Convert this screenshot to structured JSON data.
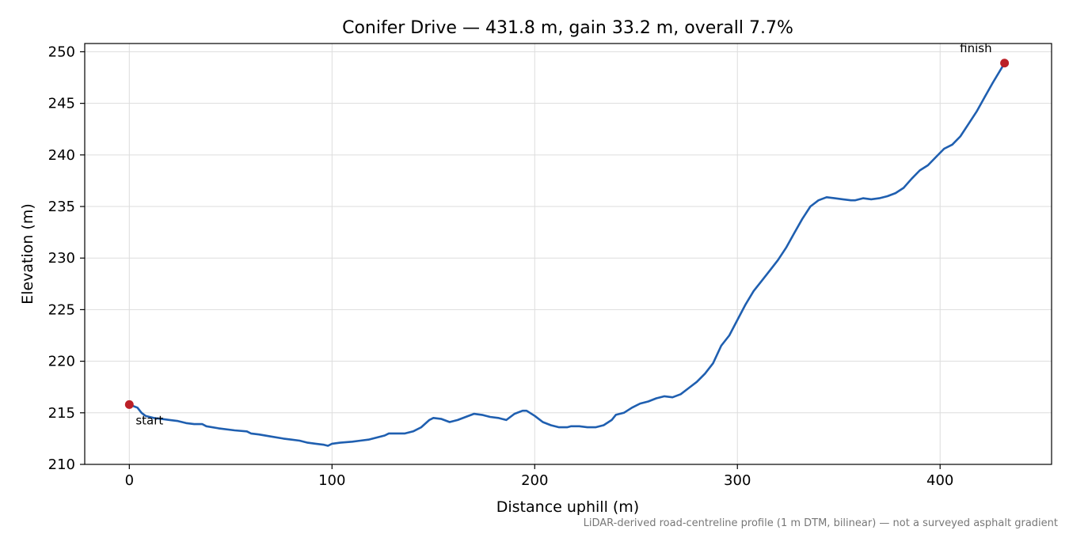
{
  "chart_data": {
    "type": "line",
    "title": "Conifer Drive — 431.8 m, gain 33.2 m, overall 7.7%",
    "xlabel": "Distance uphill (m)",
    "ylabel": "Elevation (m)",
    "xlim": [
      -22,
      455
    ],
    "ylim": [
      210,
      250.8
    ],
    "xticks": [
      0,
      100,
      200,
      300,
      400
    ],
    "yticks": [
      210,
      215,
      220,
      225,
      230,
      235,
      240,
      245,
      250
    ],
    "grid": true,
    "series": [
      {
        "color": "#1f5fb0",
        "x": [
          0,
          4,
          6,
          8,
          12,
          16,
          20,
          24,
          28,
          32,
          36,
          38,
          44,
          52,
          58,
          60,
          64,
          70,
          76,
          80,
          84,
          88,
          92,
          96,
          98,
          100,
          104,
          110,
          114,
          118,
          122,
          126,
          128,
          132,
          136,
          140,
          144,
          148,
          150,
          154,
          158,
          162,
          166,
          170,
          174,
          178,
          182,
          186,
          190,
          194,
          196,
          200,
          204,
          208,
          212,
          216,
          218,
          222,
          226,
          230,
          234,
          238,
          240,
          244,
          248,
          252,
          256,
          260,
          264,
          268,
          272,
          276,
          280,
          284,
          288,
          292,
          296,
          300,
          304,
          308,
          312,
          316,
          320,
          324,
          328,
          332,
          336,
          340,
          344,
          348,
          352,
          356,
          358,
          362,
          366,
          370,
          374,
          378,
          382,
          386,
          390,
          394,
          398,
          402,
          406,
          410,
          414,
          418,
          422,
          426,
          431.8
        ],
        "y": [
          215.8,
          215.5,
          215.0,
          214.7,
          214.5,
          214.4,
          214.3,
          214.2,
          214.0,
          213.9,
          213.9,
          213.7,
          213.5,
          213.3,
          213.2,
          213.0,
          212.9,
          212.7,
          212.5,
          212.4,
          212.3,
          212.1,
          212.0,
          211.9,
          211.8,
          212.0,
          212.1,
          212.2,
          212.3,
          212.4,
          212.6,
          212.8,
          213.0,
          213.0,
          213.0,
          213.2,
          213.6,
          214.3,
          214.5,
          214.4,
          214.1,
          214.3,
          214.6,
          214.9,
          214.8,
          214.6,
          214.5,
          214.3,
          214.9,
          215.2,
          215.2,
          214.7,
          214.1,
          213.8,
          213.6,
          213.6,
          213.7,
          213.7,
          213.6,
          213.6,
          213.8,
          214.3,
          214.8,
          215.0,
          215.5,
          215.9,
          216.1,
          216.4,
          216.6,
          216.5,
          216.8,
          217.4,
          218.0,
          218.8,
          219.8,
          221.5,
          222.5,
          224.0,
          225.5,
          226.8,
          227.8,
          228.8,
          229.8,
          231.0,
          232.4,
          233.8,
          235.0,
          235.6,
          235.9,
          235.8,
          235.7,
          235.6,
          235.6,
          235.8,
          235.7,
          235.8,
          236.0,
          236.3,
          236.8,
          237.7,
          238.5,
          239.0,
          239.8,
          240.6,
          241.0,
          241.8,
          243.0,
          244.2,
          245.6,
          247.0,
          248.9
        ]
      }
    ],
    "markers": [
      {
        "x": 0,
        "y": 215.8,
        "label": "start",
        "color": "#bb2027"
      },
      {
        "x": 431.8,
        "y": 248.9,
        "label": "finish",
        "color": "#bb2027"
      }
    ],
    "footnote": "LiDAR-derived road-centreline profile (1 m DTM, bilinear) — not a surveyed asphalt gradient"
  }
}
